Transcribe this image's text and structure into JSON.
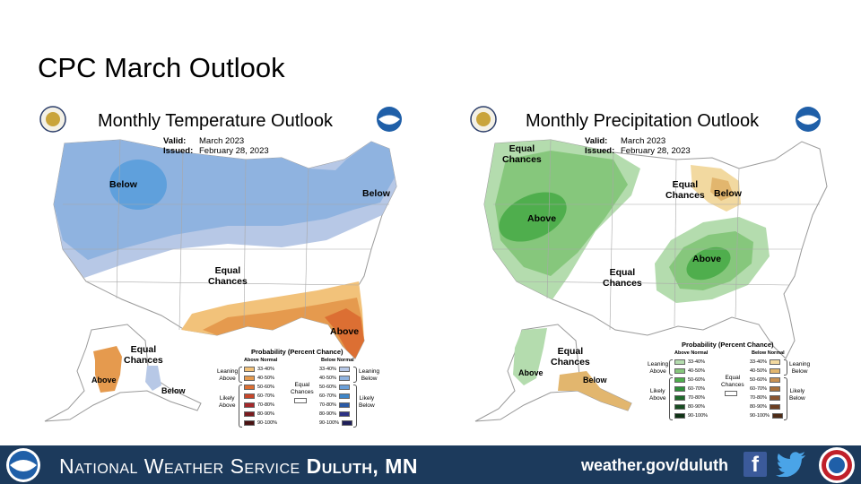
{
  "slide": {
    "title": "CPC March Outlook"
  },
  "temperature_map": {
    "title": "Monthly Temperature Outlook",
    "valid_label": "Valid:",
    "valid_value": "March 2023",
    "issued_label": "Issued:",
    "issued_value": "February 28, 2023",
    "regions": [
      {
        "label": "Below"
      },
      {
        "label": "Below"
      },
      {
        "label": "Equal\nChances"
      },
      {
        "label": "Above"
      },
      {
        "label": "Equal\nChances"
      },
      {
        "label": "Above"
      },
      {
        "label": "Below"
      }
    ],
    "legend": {
      "title": "Probability (Percent Chance)",
      "left_head": "Above Normal",
      "right_head": "Below Normal",
      "center": "Equal\nChances",
      "left_upper_side": "Leaning\nAbove",
      "left_lower_side": "Likely\nAbove",
      "right_upper_side": "Leaning\nBelow",
      "right_lower_side": "Likely\nBelow",
      "bins": [
        "33-40%",
        "40-50%",
        "50-60%",
        "60-70%",
        "70-80%",
        "80-90%",
        "90-100%"
      ],
      "left_colors": [
        "#f2c27a",
        "#e59a4e",
        "#dc6f33",
        "#c8462a",
        "#a5282a",
        "#7a1a1e",
        "#4a1212"
      ],
      "right_colors": [
        "#b7c8e6",
        "#8fb3e0",
        "#6a9fd8",
        "#3f86c8",
        "#2a5aa6",
        "#2d3285",
        "#1f1f5a"
      ]
    }
  },
  "precipitation_map": {
    "title": "Monthly Precipitation Outlook",
    "valid_label": "Valid:",
    "valid_value": "March 2023",
    "issued_label": "Issued:",
    "issued_value": "February 28, 2023",
    "regions": [
      {
        "label": "Equal\nChances"
      },
      {
        "label": "Equal\nChances"
      },
      {
        "label": "Below"
      },
      {
        "label": "Above"
      },
      {
        "label": "Equal\nChances"
      },
      {
        "label": "Above"
      },
      {
        "label": "Equal\nChances"
      },
      {
        "label": "Above"
      },
      {
        "label": "Below"
      }
    ],
    "legend": {
      "title": "Probability (Percent Chance)",
      "left_head": "Above Normal",
      "right_head": "Below Normal",
      "center": "Equal\nChances",
      "left_upper_side": "Leaning\nAbove",
      "left_lower_side": "Likely\nAbove",
      "right_upper_side": "Leaning\nBelow",
      "right_lower_side": "Likely\nBelow",
      "bins": [
        "33-40%",
        "40-50%",
        "50-60%",
        "60-70%",
        "70-80%",
        "80-90%",
        "90-100%"
      ],
      "left_colors": [
        "#b4dcae",
        "#86c77c",
        "#4fae4d",
        "#2e8f3a",
        "#1f6b2c",
        "#184d22",
        "#0f3316"
      ],
      "right_colors": [
        "#f2d9a0",
        "#e2b66e",
        "#c99253",
        "#a8703b",
        "#8a5530",
        "#6b3f22",
        "#4e2b16"
      ]
    }
  },
  "footer": {
    "org_prefix": "National Weather Service",
    "org_city": "Duluth, MN",
    "url": "weather.gov/duluth",
    "facebook_glyph": "f",
    "bg_color": "#1c3a5c"
  }
}
